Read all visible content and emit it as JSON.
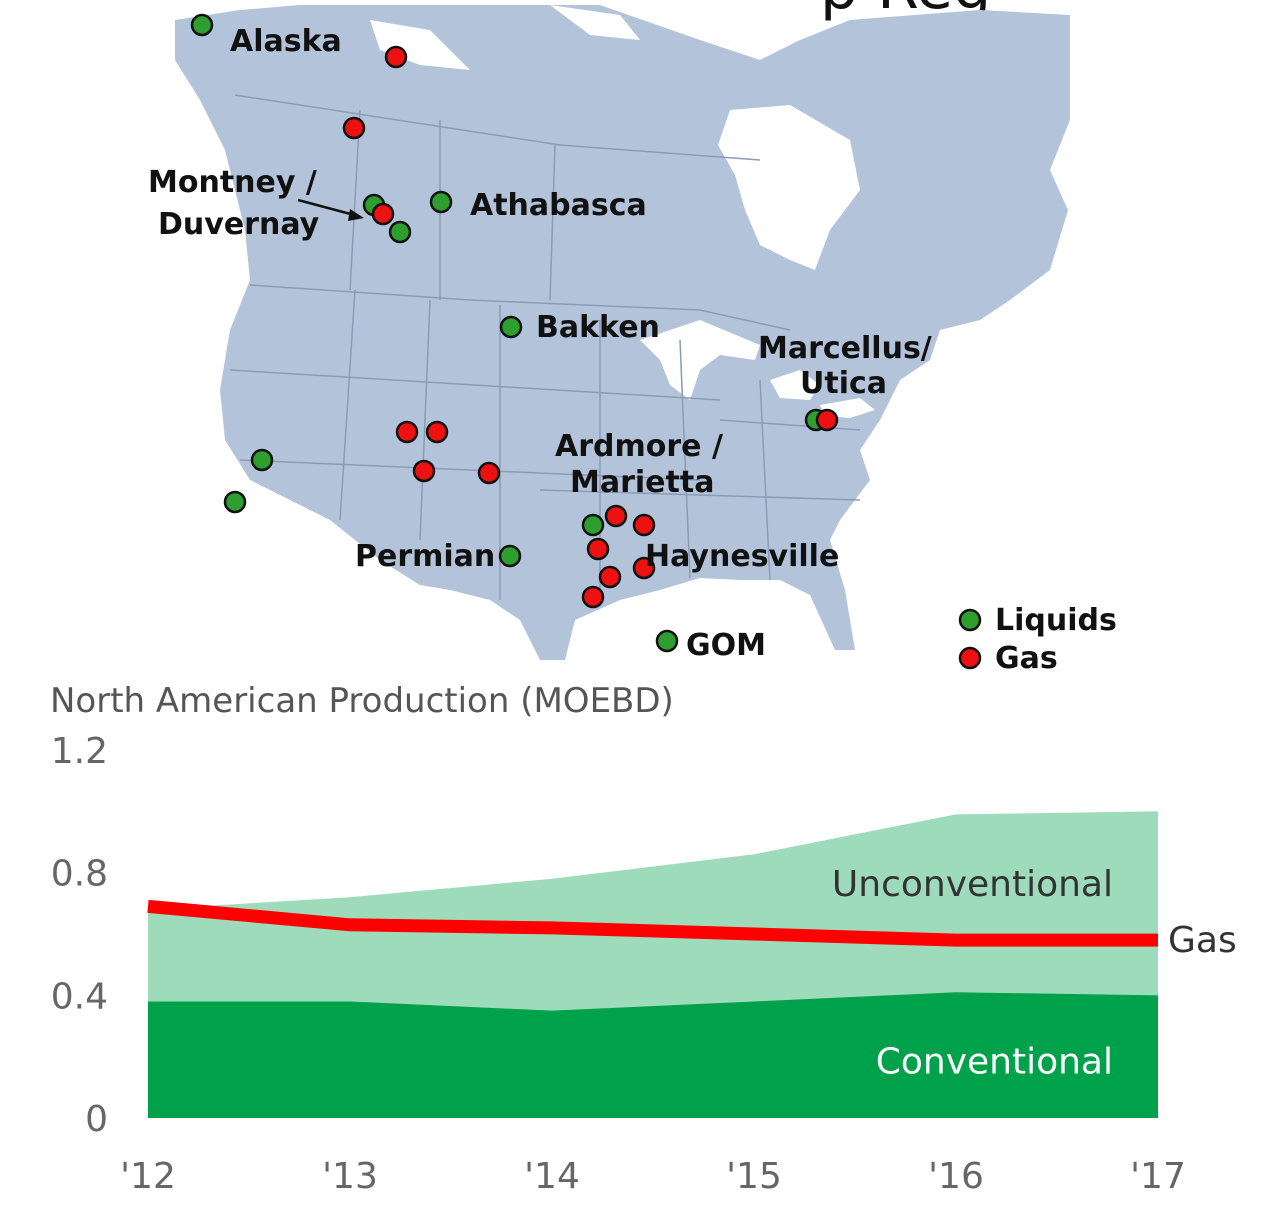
{
  "header_fragment": "p Reg",
  "map": {
    "labels": {
      "alaska": "Alaska",
      "montney_1": "Montney /",
      "montney_2": "Duvernay",
      "athabasca": "Athabasca",
      "bakken": "Bakken",
      "marcellus_1": "Marcellus/",
      "marcellus_2": "Utica",
      "ardmore_1": "Ardmore /",
      "ardmore_2": "Marietta",
      "permian": "Permian",
      "haynesville": "Haynesville",
      "gom": "GOM"
    },
    "legend": {
      "liquids": "Liquids",
      "gas": "Gas"
    },
    "colors": {
      "liquids": "#2e9e2e",
      "gas": "#ee1111",
      "land": "#b3c4da",
      "border": "#8a9bb5"
    }
  },
  "chart_data": {
    "type": "area",
    "title": "North American Production (MOEBD)",
    "x": [
      "'12",
      "'13",
      "'14",
      "'15",
      "'16",
      "'17"
    ],
    "ylim": [
      0,
      1.2
    ],
    "yticks": [
      "1.2",
      "0.8",
      "0.4",
      "0"
    ],
    "series": [
      {
        "name": "Conventional",
        "values": [
          0.38,
          0.38,
          0.35,
          0.38,
          0.41,
          0.4
        ],
        "color": "#00a14b"
      },
      {
        "name": "Unconventional",
        "values": [
          0.68,
          0.72,
          0.78,
          0.86,
          0.99,
          1.0
        ],
        "color": "#9ddbba"
      },
      {
        "name": "Gas",
        "values": [
          0.69,
          0.63,
          0.62,
          0.6,
          0.58,
          0.58
        ],
        "color": "#ff0000"
      }
    ]
  }
}
